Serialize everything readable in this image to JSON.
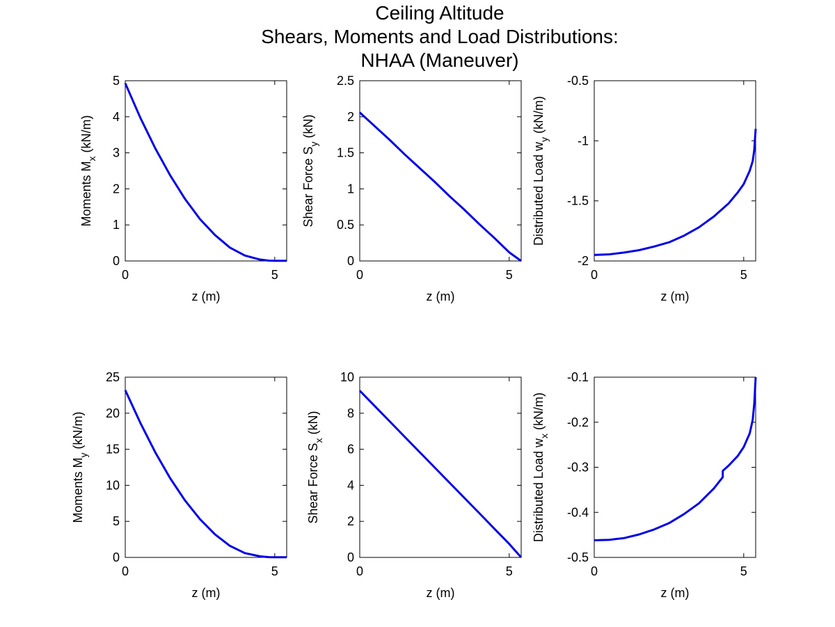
{
  "figure": {
    "title_lines": [
      "Ceiling Altitude",
      "Shears, Moments and Load Distributions:",
      "NHAA (Maneuver)"
    ],
    "line_color": "#0000e6"
  },
  "chart_data": [
    {
      "type": "line",
      "xlabel": "z (m)",
      "ylabel": {
        "main": "Moments M",
        "sub": "x",
        "unit": " (kN/m)"
      },
      "xlim": [
        0,
        5.4
      ],
      "ylim": [
        0,
        5
      ],
      "xticks": [
        0,
        5
      ],
      "yticks": [
        0,
        1,
        2,
        3,
        4,
        5
      ],
      "ytick_labels": [
        "0",
        "1",
        "2",
        "3",
        "4",
        "5"
      ],
      "x": [
        0,
        0.5,
        1.0,
        1.5,
        2.0,
        2.5,
        3.0,
        3.5,
        4.0,
        4.5,
        4.8,
        5.0,
        5.2,
        5.4
      ],
      "y": [
        4.93,
        3.98,
        3.13,
        2.38,
        1.72,
        1.16,
        0.72,
        0.37,
        0.15,
        0.04,
        0.01,
        0.005,
        0.005,
        0.005
      ],
      "grid": false
    },
    {
      "type": "line",
      "xlabel": "z (m)",
      "ylabel": {
        "main": "Shear Force S",
        "sub": "y",
        "unit": " (kN)"
      },
      "xlim": [
        0,
        5.4
      ],
      "ylim": [
        0,
        2.5
      ],
      "xticks": [
        0,
        5
      ],
      "yticks": [
        0,
        0.5,
        1,
        1.5,
        2,
        2.5
      ],
      "ytick_labels": [
        "0",
        "0.5",
        "1",
        "1.5",
        "2",
        "2.5"
      ],
      "x": [
        0,
        0.5,
        1.0,
        1.5,
        2.0,
        2.5,
        3.0,
        3.5,
        4.0,
        4.5,
        5.0,
        5.4
      ],
      "y": [
        2.06,
        1.87,
        1.68,
        1.48,
        1.29,
        1.1,
        0.9,
        0.71,
        0.51,
        0.32,
        0.12,
        0.0
      ],
      "grid": false
    },
    {
      "type": "line",
      "xlabel": "z (m)",
      "ylabel": {
        "main": "Distributed Load w",
        "sub": "y",
        "unit": " (kN/m)"
      },
      "xlim": [
        0,
        5.4
      ],
      "ylim": [
        -2,
        -0.5
      ],
      "xticks": [
        0,
        5
      ],
      "yticks": [
        -2,
        -1.5,
        -1,
        -0.5
      ],
      "ytick_labels": [
        "-2",
        "-1.5",
        "-1",
        "-0.5"
      ],
      "x": [
        0,
        0.5,
        1.0,
        1.5,
        2.0,
        2.5,
        3.0,
        3.5,
        4.0,
        4.5,
        4.8,
        5.0,
        5.2,
        5.3,
        5.35,
        5.4
      ],
      "y": [
        -1.95,
        -1.945,
        -1.93,
        -1.91,
        -1.88,
        -1.845,
        -1.79,
        -1.72,
        -1.63,
        -1.52,
        -1.43,
        -1.36,
        -1.25,
        -1.17,
        -1.08,
        -0.9
      ],
      "grid": false
    },
    {
      "type": "line",
      "xlabel": "z (m)",
      "ylabel": {
        "main": "Moments M",
        "sub": "y",
        "unit": " (kN/m)"
      },
      "xlim": [
        0,
        5.4
      ],
      "ylim": [
        0,
        25
      ],
      "xticks": [
        0,
        5
      ],
      "yticks": [
        0,
        5,
        10,
        15,
        20,
        25
      ],
      "ytick_labels": [
        "0",
        "5",
        "10",
        "15",
        "20",
        "25"
      ],
      "x": [
        0,
        0.5,
        1.0,
        1.5,
        2.0,
        2.5,
        3.0,
        3.5,
        4.0,
        4.5,
        4.8,
        5.0,
        5.2,
        5.4
      ],
      "y": [
        23.2,
        18.7,
        14.6,
        11.0,
        7.9,
        5.3,
        3.2,
        1.6,
        0.6,
        0.15,
        0.04,
        0.02,
        0.02,
        0.02
      ],
      "grid": false
    },
    {
      "type": "line",
      "xlabel": "z (m)",
      "ylabel": {
        "main": "Shear Force S",
        "sub": "x",
        "unit": " (kN)"
      },
      "xlim": [
        0,
        5.4
      ],
      "ylim": [
        0,
        10
      ],
      "xticks": [
        0,
        5
      ],
      "yticks": [
        0,
        2,
        4,
        6,
        8,
        10
      ],
      "ytick_labels": [
        "0",
        "2",
        "4",
        "6",
        "8",
        "10"
      ],
      "x": [
        0,
        0.5,
        1.0,
        1.5,
        2.0,
        2.5,
        3.0,
        3.5,
        4.0,
        4.5,
        5.0,
        5.4
      ],
      "y": [
        9.25,
        8.4,
        7.55,
        6.7,
        5.85,
        5.0,
        4.15,
        3.3,
        2.45,
        1.6,
        0.75,
        0.0
      ],
      "grid": false
    },
    {
      "type": "line",
      "xlabel": "z (m)",
      "ylabel": {
        "main": "Distributed Load w",
        "sub": "x",
        "unit": " (kN/m)"
      },
      "xlim": [
        0,
        5.4
      ],
      "ylim": [
        -0.5,
        -0.1
      ],
      "xticks": [
        0,
        5
      ],
      "yticks": [
        -0.5,
        -0.4,
        -0.3,
        -0.2,
        -0.1
      ],
      "ytick_labels": [
        "-0.5",
        "-0.4",
        "-0.3",
        "-0.2",
        "-0.1"
      ],
      "x": [
        0,
        0.5,
        1.0,
        1.5,
        2.0,
        2.5,
        3.0,
        3.5,
        4.0,
        4.3,
        4.3,
        4.5,
        4.8,
        5.0,
        5.2,
        5.3,
        5.35,
        5.4
      ],
      "y": [
        -0.462,
        -0.461,
        -0.457,
        -0.449,
        -0.438,
        -0.424,
        -0.404,
        -0.38,
        -0.347,
        -0.322,
        -0.308,
        -0.296,
        -0.275,
        -0.255,
        -0.225,
        -0.195,
        -0.16,
        -0.1
      ],
      "grid": false
    }
  ]
}
